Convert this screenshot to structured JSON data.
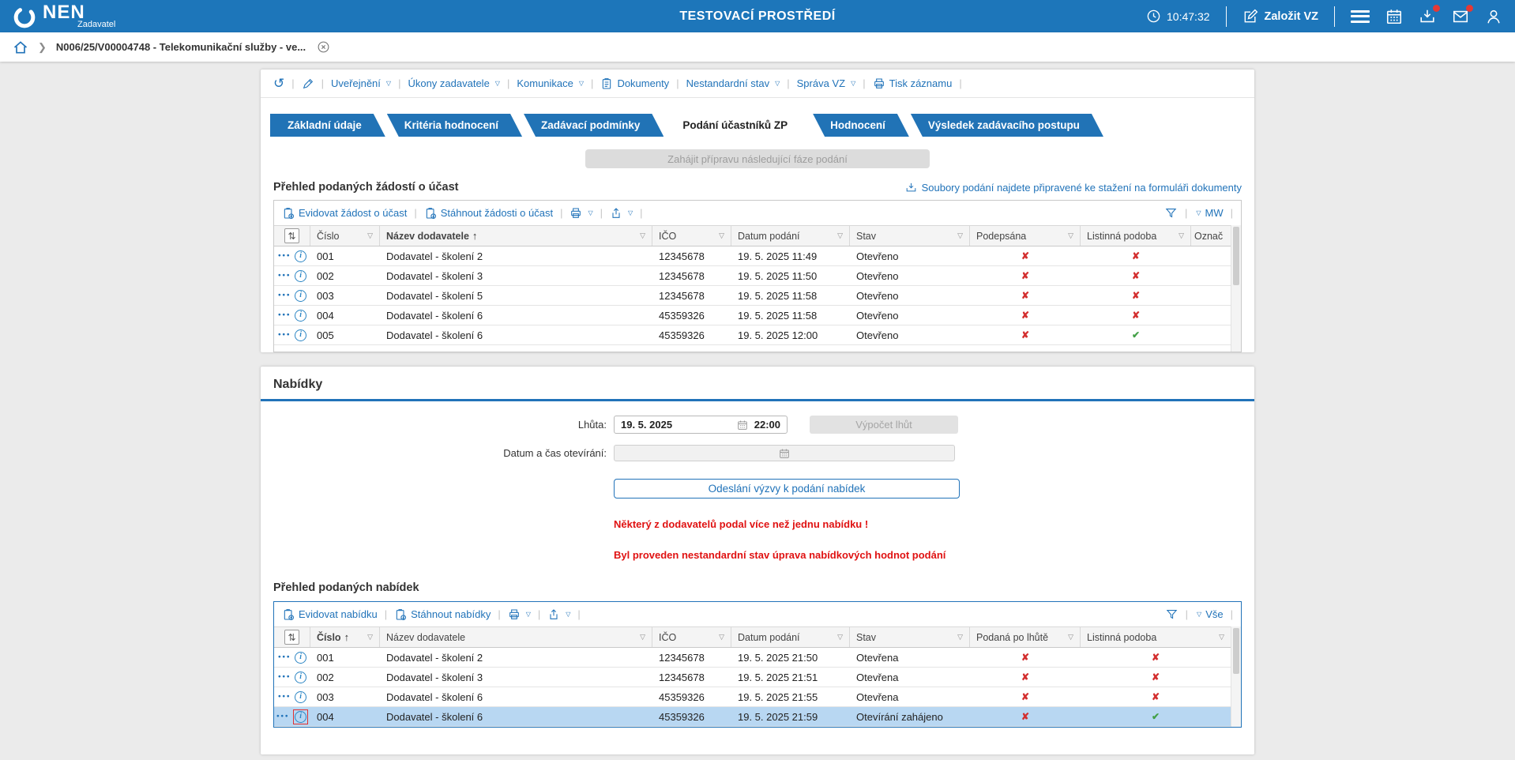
{
  "palette": {
    "topbar": "#1d76ba",
    "accent": "#2173b9",
    "error": "#e01212",
    "success": "#43a047",
    "selected_row": "#b8d7f2"
  },
  "header": {
    "logo_text": "NEN",
    "logo_subtitle": "Zadavatel",
    "environment_title": "TESTOVACÍ PROSTŘEDÍ",
    "time": "10:47:32",
    "create_vz_label": "Založit VZ"
  },
  "breadcrumb": {
    "item": "N006/25/V00004748 - Telekomunikační služby - ve..."
  },
  "record_toolbar": {
    "items": [
      {
        "label": "Uveřejnění"
      },
      {
        "label": "Úkony zadavatele"
      },
      {
        "label": "Komunikace"
      },
      {
        "label": "Dokumenty"
      },
      {
        "label": "Nestandardní stav"
      },
      {
        "label": "Správa VZ"
      },
      {
        "label": "Tisk záznamu"
      }
    ]
  },
  "tabs": [
    {
      "label": "Základní údaje"
    },
    {
      "label": "Kritéria hodnocení"
    },
    {
      "label": "Zadávací podmínky"
    },
    {
      "label": "Podání účastníků ZP",
      "active": true
    },
    {
      "label": "Hodnocení"
    },
    {
      "label": "Výsledek zadávacího postupu"
    }
  ],
  "phase_button_label": "Zahájit přípravu následující fáze podání",
  "requests_table": {
    "title": "Přehled podaných žádostí o účast",
    "side_link": "Soubory podání najdete připravené ke stažení na formuláři dokumenty",
    "actions": [
      "Evidovat žádost o účast",
      "Stáhnout žádosti o účast"
    ],
    "filter_scope": "MW",
    "columns": {
      "cislo": "Číslo",
      "nazev": "Název dodavatele",
      "ico": "IČO",
      "datum": "Datum podání",
      "stav": "Stav",
      "flag1": "Podepsána",
      "flag2": "Listinná podoba",
      "extra": "Označ"
    },
    "rows": [
      {
        "cislo": "001",
        "nazev": "Dodavatel - školení 2",
        "ico": "12345678",
        "datum": "19. 5. 2025 11:49",
        "stav": "Otevřeno",
        "flag1": "x",
        "flag2": "x"
      },
      {
        "cislo": "002",
        "nazev": "Dodavatel - školení 3",
        "ico": "12345678",
        "datum": "19. 5. 2025 11:50",
        "stav": "Otevřeno",
        "flag1": "x",
        "flag2": "x"
      },
      {
        "cislo": "003",
        "nazev": "Dodavatel - školení 5",
        "ico": "12345678",
        "datum": "19. 5. 2025 11:58",
        "stav": "Otevřeno",
        "flag1": "x",
        "flag2": "x"
      },
      {
        "cislo": "004",
        "nazev": "Dodavatel - školení 6",
        "ico": "45359326",
        "datum": "19. 5. 2025 11:58",
        "stav": "Otevřeno",
        "flag1": "x",
        "flag2": "x"
      },
      {
        "cislo": "005",
        "nazev": "Dodavatel - školení 6",
        "ico": "45359326",
        "datum": "19. 5. 2025 12:00",
        "stav": "Otevřeno",
        "flag1": "x",
        "flag2": "check"
      }
    ]
  },
  "offers_section": {
    "heading": "Nabídky",
    "lhuta_label": "Lhůta:",
    "lhuta_date": "19. 5. 2025",
    "lhuta_time": "22:00",
    "vypocet_button": "Výpočet lhůt",
    "open_label": "Datum a čas otevírání:",
    "send_button": "Odeslání výzvy k podání nabídek",
    "warning1": "Některý z dodavatelů podal více než jednu nabídku !",
    "warning2": "Byl proveden nestandardní stav úprava nabídkových hodnot podání"
  },
  "offers_table": {
    "title": "Přehled podaných nabídek",
    "actions": [
      "Evidovat nabídku",
      "Stáhnout nabídky"
    ],
    "filter_scope": "Vše",
    "columns": {
      "cislo": "Číslo",
      "nazev": "Název dodavatele",
      "ico": "IČO",
      "datum": "Datum podání",
      "stav": "Stav",
      "flag1": "Podaná po lhůtě",
      "flag2": "Listinná podoba"
    },
    "rows": [
      {
        "cislo": "001",
        "nazev": "Dodavatel - školení 2",
        "ico": "12345678",
        "datum": "19. 5. 2025 21:50",
        "stav": "Otevřena",
        "flag1": "x",
        "flag2": "x"
      },
      {
        "cislo": "002",
        "nazev": "Dodavatel - školení 3",
        "ico": "12345678",
        "datum": "19. 5. 2025 21:51",
        "stav": "Otevřena",
        "flag1": "x",
        "flag2": "x"
      },
      {
        "cislo": "003",
        "nazev": "Dodavatel - školení 6",
        "ico": "45359326",
        "datum": "19. 5. 2025 21:55",
        "stav": "Otevřena",
        "flag1": "x",
        "flag2": "x"
      },
      {
        "cislo": "004",
        "nazev": "Dodavatel - školení 6",
        "ico": "45359326",
        "datum": "19. 5. 2025 21:59",
        "stav": "Otevírání zahájeno",
        "flag1": "x",
        "flag2": "check",
        "selected": true,
        "info_highlight": true
      }
    ]
  }
}
